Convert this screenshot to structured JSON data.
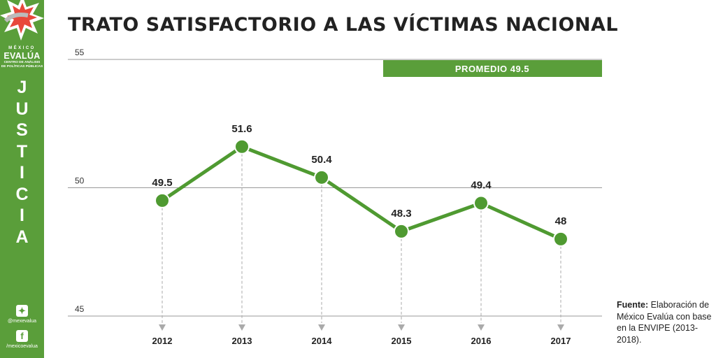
{
  "sidebar": {
    "brand_top": "MÉXICO",
    "brand_main": "EVALÚA",
    "brand_sub_1": "CENTRO DE ANÁLISIS",
    "brand_sub_2": "DE POLÍTICAS PÚBLICAS",
    "section_letters": [
      "J",
      "U",
      "S",
      "T",
      "I",
      "C",
      "I",
      "A"
    ],
    "twitter_handle": "@mexevalua",
    "facebook_handle": "/mexicoevalua"
  },
  "source": {
    "label": "Fuente:",
    "text": "Elaboración de México Evalúa con base en la ENVIPE (2013-2018)."
  },
  "colors": {
    "accent": "#5a9e3a",
    "line": "#4f9a31",
    "grid": "#999999"
  },
  "chart_data": {
    "type": "line",
    "title": "TRATO SATISFACTORIO A LAS VÍCTIMAS NACIONAL",
    "categories": [
      "2012",
      "2013",
      "2014",
      "2015",
      "2016",
      "2017"
    ],
    "values": [
      49.5,
      51.6,
      50.4,
      48.3,
      49.4,
      48
    ],
    "value_labels": [
      "49.5",
      "51.6",
      "50.4",
      "48.3",
      "49.4",
      "48"
    ],
    "y_ticks": [
      55,
      50,
      45
    ],
    "y_tick_labels": [
      "55",
      "50",
      "45"
    ],
    "ylim": [
      45,
      55
    ],
    "average_label": "PROMEDIO 49.5",
    "average": 49.5,
    "xlabel": "",
    "ylabel": ""
  }
}
